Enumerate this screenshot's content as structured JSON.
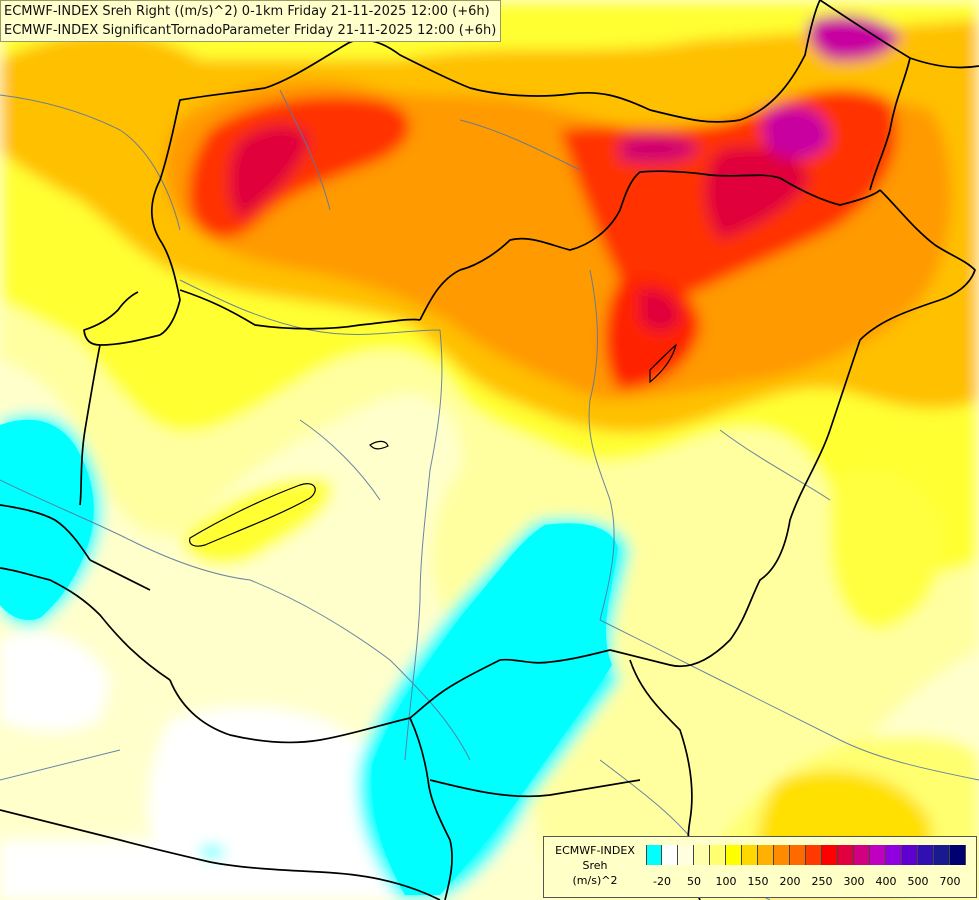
{
  "titles": {
    "line1": "ECMWF-INDEX Sreh Right ((m/s)^2) 0-1km Friday 21-11-2025 12:00 (+6h)",
    "line2": "ECMWF-INDEX SignificantTornadoParameter Friday 21-11-2025 12:00 (+6h)"
  },
  "legend": {
    "title_lines": [
      "ECMWF-INDEX",
      "Sreh",
      "(m/s)^2"
    ],
    "colors": [
      "#00ffff",
      "#ffffff",
      "#ffffe0",
      "#ffffaa",
      "#ffff70",
      "#ffff00",
      "#ffd800",
      "#ffb000",
      "#ff8c00",
      "#ff6a00",
      "#ff3a00",
      "#ff0000",
      "#e00040",
      "#d00080",
      "#c000c0",
      "#9000e0",
      "#6000d0",
      "#3010b0",
      "#1a1a90",
      "#000070"
    ],
    "ticks": [
      "-20",
      "50",
      "100",
      "150",
      "200",
      "250",
      "300",
      "400",
      "500",
      "700"
    ]
  }
}
